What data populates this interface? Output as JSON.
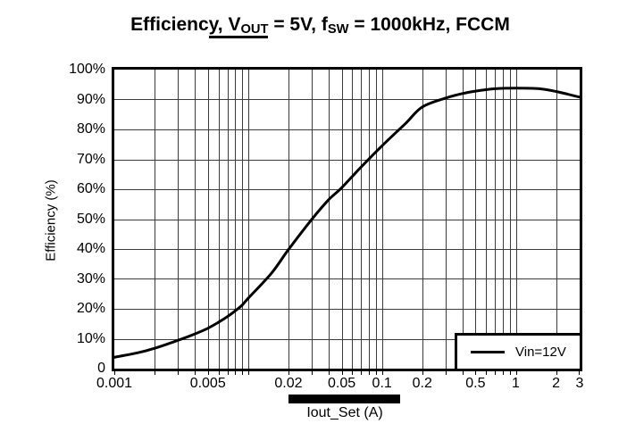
{
  "title": {
    "part1": "Efficienc",
    "underlined_text": "y, V",
    "underlined_sub": "OUT",
    "part2": " = 5V, f",
    "part2_sub": "SW",
    "part3": " = 1000kHz, FCCM",
    "full": "Efficiency, VOUT = 5V, fSW = 1000kHz, FCCM"
  },
  "chart": {
    "y_axis_title": "Efficiency (%)",
    "x_axis_title": "Iout_Set (A)",
    "legend": [
      {
        "label": "Vin=12V"
      }
    ]
  },
  "colors": {
    "background": "#ffffff",
    "frame": "#000000",
    "grid": "#3c3c3c",
    "curve": "#000000",
    "highlight_bar": "#000000",
    "text": "#000000"
  },
  "chart_data": {
    "type": "line",
    "title": "Efficiency, VOUT = 5V, fSW = 1000kHz, FCCM",
    "xlabel": "Iout_Set (A)",
    "ylabel": "Efficiency (%)",
    "x_scale": "log",
    "xlim": [
      0.001,
      3
    ],
    "ylim": [
      0,
      100
    ],
    "grid": true,
    "legend_position": "lower right",
    "x_ticks": [
      {
        "value": 0.001,
        "label": "0.001"
      },
      {
        "value": 0.005,
        "label": "0.005"
      },
      {
        "value": 0.02,
        "label": "0.02"
      },
      {
        "value": 0.05,
        "label": "0.05"
      },
      {
        "value": 0.1,
        "label": "0.1"
      },
      {
        "value": 0.2,
        "label": "0.2"
      },
      {
        "value": 0.5,
        "label": "0.5"
      },
      {
        "value": 1,
        "label": "1"
      },
      {
        "value": 2,
        "label": "2"
      },
      {
        "value": 3,
        "label": "3"
      }
    ],
    "y_ticks": [
      {
        "value": 100,
        "label": "100%"
      },
      {
        "value": 90,
        "label": "90%"
      },
      {
        "value": 80,
        "label": "80%"
      },
      {
        "value": 70,
        "label": "70%"
      },
      {
        "value": 60,
        "label": "60%"
      },
      {
        "value": 50,
        "label": "50%"
      },
      {
        "value": 40,
        "label": "40%"
      },
      {
        "value": 30,
        "label": "30%"
      },
      {
        "value": 20,
        "label": "20%"
      },
      {
        "value": 10,
        "label": "10%"
      },
      {
        "value": 0,
        "label": "0"
      }
    ],
    "series": [
      {
        "name": "Vin=12V",
        "color": "#000000",
        "points": [
          [
            0.001,
            3.8
          ],
          [
            0.0015,
            5.3
          ],
          [
            0.002,
            6.8
          ],
          [
            0.003,
            9.5
          ],
          [
            0.004,
            11.6
          ],
          [
            0.005,
            13.5
          ],
          [
            0.006,
            15.5
          ],
          [
            0.007,
            17.4
          ],
          [
            0.008,
            19.3
          ],
          [
            0.009,
            21.2
          ],
          [
            0.01,
            23.5
          ],
          [
            0.015,
            32
          ],
          [
            0.02,
            39.8
          ],
          [
            0.03,
            50
          ],
          [
            0.04,
            56.5
          ],
          [
            0.05,
            60.5
          ],
          [
            0.07,
            67.5
          ],
          [
            0.1,
            74.5
          ],
          [
            0.15,
            82
          ],
          [
            0.2,
            87.5
          ],
          [
            0.3,
            90.5
          ],
          [
            0.4,
            92
          ],
          [
            0.5,
            92.8
          ],
          [
            0.7,
            93.6
          ],
          [
            1,
            93.8
          ],
          [
            1.5,
            93.6
          ],
          [
            2,
            92.7
          ],
          [
            3,
            90.8
          ]
        ]
      }
    ]
  }
}
